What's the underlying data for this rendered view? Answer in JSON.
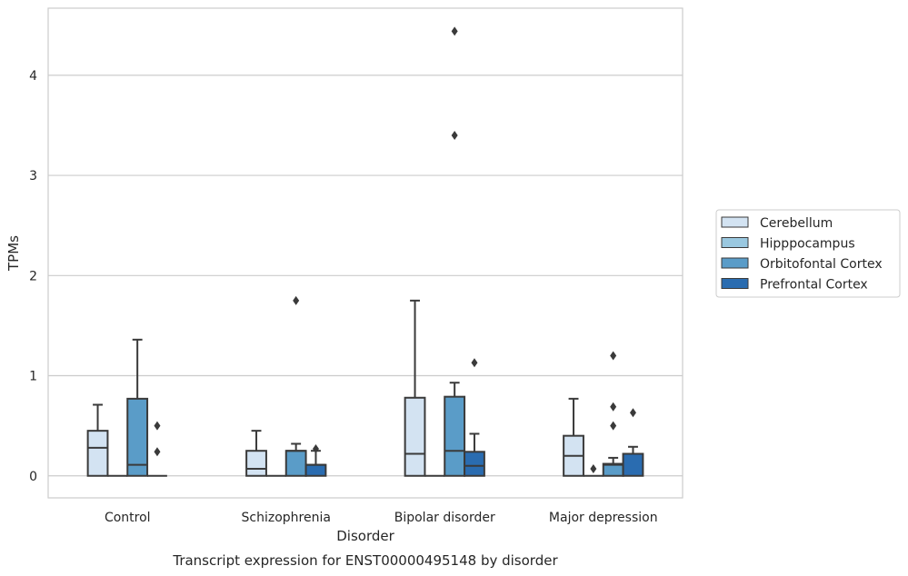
{
  "chart_data": {
    "type": "box",
    "caption": "Transcript expression for ENST00000495148 by disorder",
    "xlabel": "Disorder",
    "ylabel": "TPMs",
    "ylim": [
      -0.22,
      4.67
    ],
    "yticks": [
      0,
      1,
      2,
      3,
      4
    ],
    "grid": "horizontal",
    "legend_position": "right",
    "categories": [
      "Control",
      "Schizophrenia",
      "Bipolar disorder",
      "Major depression"
    ],
    "series": [
      {
        "name": "Cerebellum",
        "color": "#d3e3f2",
        "boxes": [
          {
            "min": 0,
            "q1": 0,
            "median": 0.28,
            "q3": 0.45,
            "max": 0.71,
            "outliers": []
          },
          {
            "min": 0,
            "q1": 0,
            "median": 0.07,
            "q3": 0.25,
            "max": 0.45,
            "outliers": []
          },
          {
            "min": 0,
            "q1": 0,
            "median": 0.22,
            "q3": 0.78,
            "max": 1.75,
            "outliers": []
          },
          {
            "min": 0,
            "q1": 0,
            "median": 0.2,
            "q3": 0.4,
            "max": 0.77,
            "outliers": []
          }
        ]
      },
      {
        "name": "Hipppocampus",
        "color": "#9ac8e0",
        "boxes": [
          {
            "min": 0,
            "q1": 0,
            "median": 0,
            "q3": 0,
            "max": 0,
            "outliers": []
          },
          {
            "min": 0,
            "q1": 0,
            "median": 0,
            "q3": 0,
            "max": 0,
            "outliers": []
          },
          {
            "min": 0,
            "q1": 0,
            "median": 0,
            "q3": 0,
            "max": 0,
            "outliers": []
          },
          {
            "min": 0,
            "q1": 0,
            "median": 0,
            "q3": 0,
            "max": 0,
            "outliers": [
              0.07
            ]
          }
        ]
      },
      {
        "name": "Orbitofontal Cortex",
        "color": "#5a9cc8",
        "boxes": [
          {
            "min": 0,
            "q1": 0,
            "median": 0.11,
            "q3": 0.77,
            "max": 1.36,
            "outliers": []
          },
          {
            "min": 0,
            "q1": 0,
            "median": 0.25,
            "q3": 0.25,
            "max": 0.32,
            "outliers": [
              1.75
            ]
          },
          {
            "min": 0,
            "q1": 0,
            "median": 0.25,
            "q3": 0.79,
            "max": 0.93,
            "outliers": [
              4.44,
              3.4
            ]
          },
          {
            "min": 0,
            "q1": 0,
            "median": 0.11,
            "q3": 0.12,
            "max": 0.18,
            "outliers": [
              1.2,
              0.69,
              0.5
            ]
          }
        ]
      },
      {
        "name": "Prefrontal Cortex",
        "color": "#2a6cb0",
        "boxes": [
          {
            "min": 0,
            "q1": 0,
            "median": 0,
            "q3": 0,
            "max": 0,
            "outliers": [
              0.5,
              0.24
            ]
          },
          {
            "min": 0,
            "q1": 0,
            "median": 0.11,
            "q3": 0.11,
            "max": 0.25,
            "outliers": [
              0.27
            ]
          },
          {
            "min": 0,
            "q1": 0,
            "median": 0.1,
            "q3": 0.24,
            "max": 0.42,
            "outliers": [
              1.13
            ]
          },
          {
            "min": 0,
            "q1": 0,
            "median": 0.22,
            "q3": 0.22,
            "max": 0.29,
            "outliers": [
              0.63
            ]
          }
        ]
      }
    ]
  }
}
